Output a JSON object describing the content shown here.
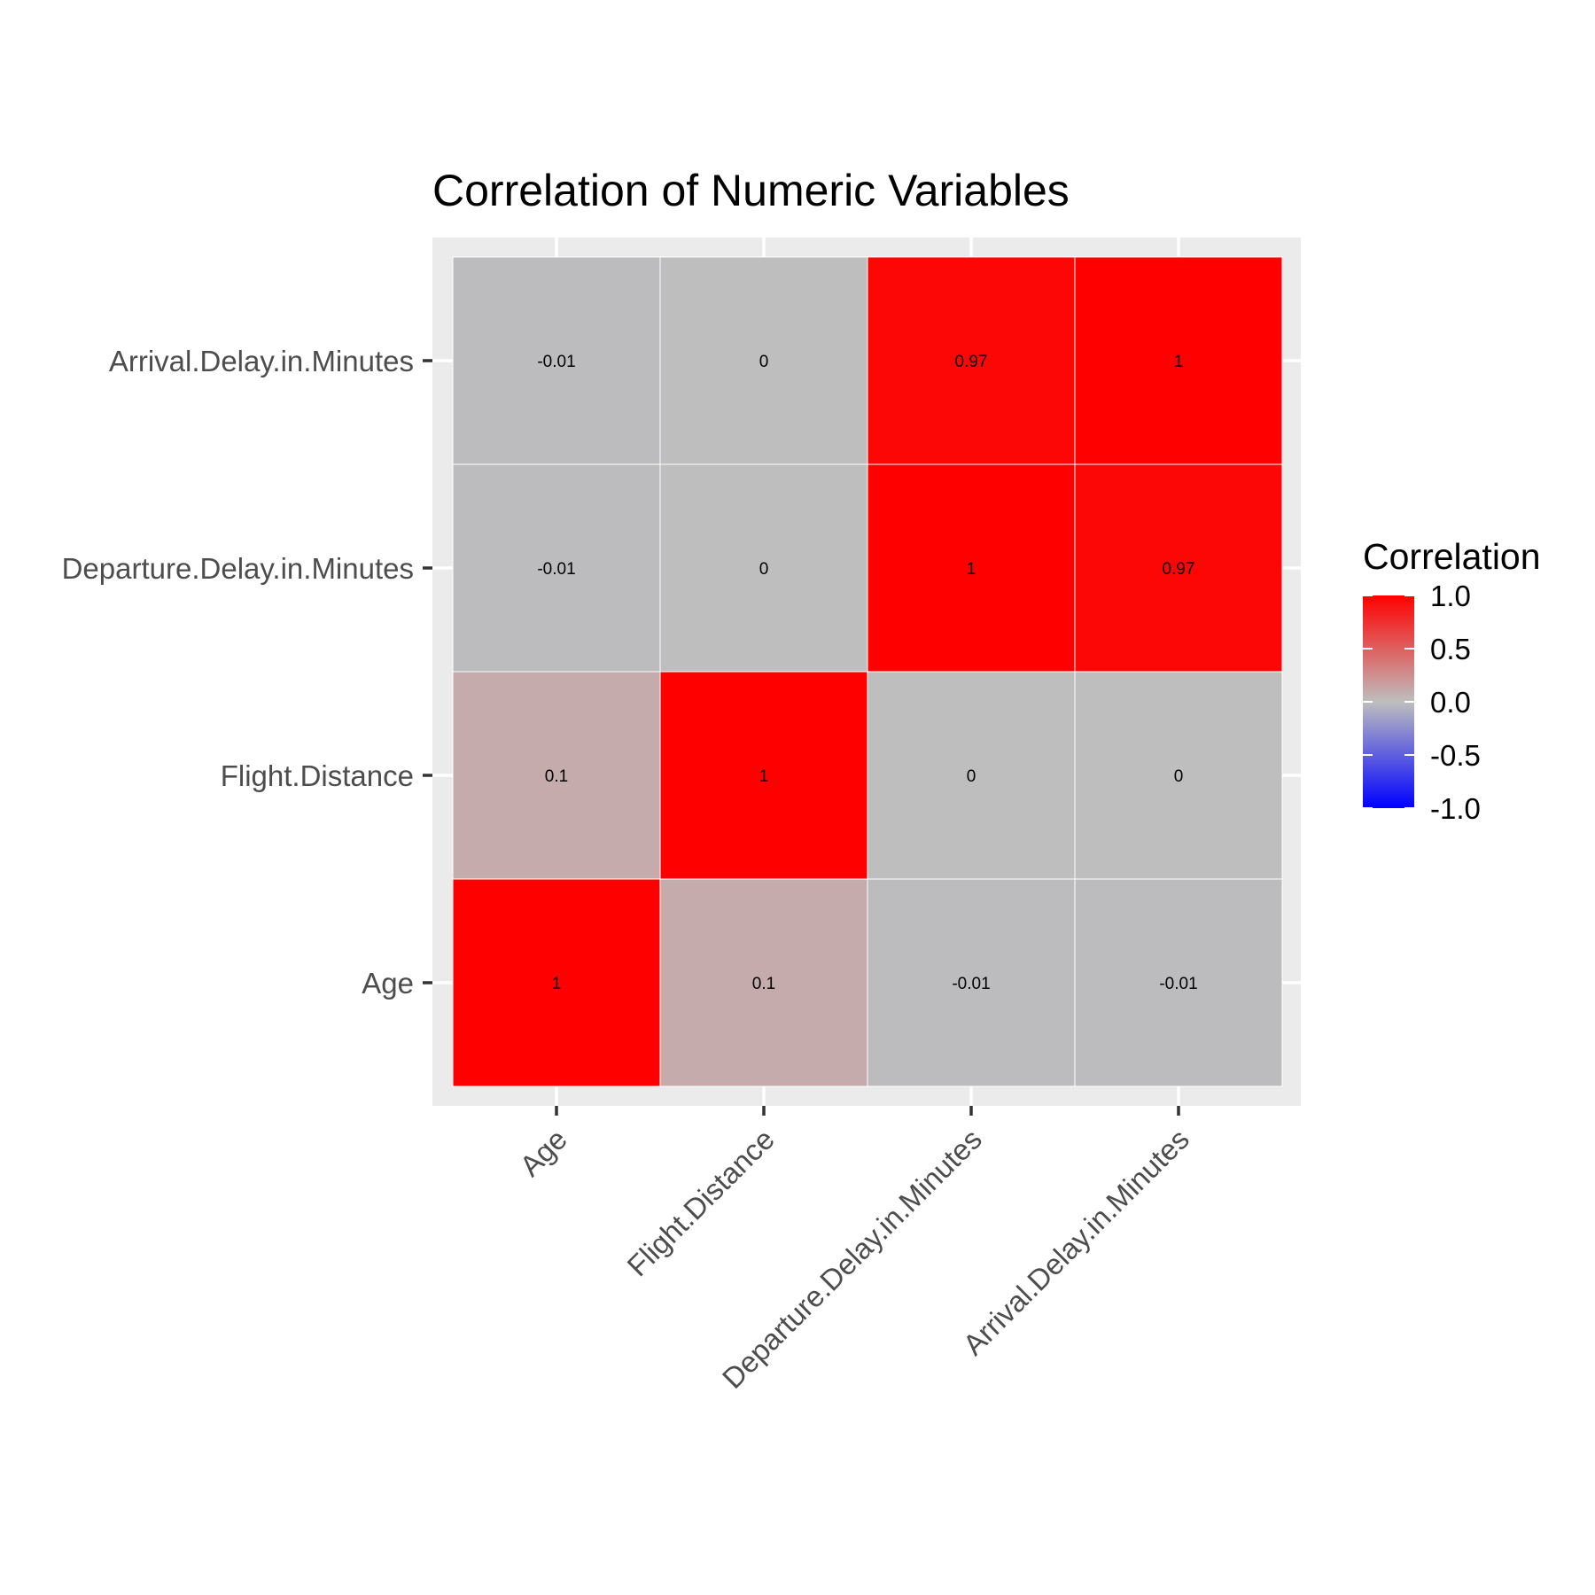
{
  "chart_data": {
    "type": "heatmap",
    "title": "Correlation of Numeric Variables",
    "xlabel": "",
    "ylabel": "",
    "variables": [
      "Age",
      "Flight.Distance",
      "Departure.Delay.in.Minutes",
      "Arrival.Delay.in.Minutes"
    ],
    "matrix": [
      [
        1,
        0.1,
        -0.01,
        -0.01
      ],
      [
        0.1,
        1,
        0,
        0
      ],
      [
        -0.01,
        0,
        1,
        0.97
      ],
      [
        -0.01,
        0,
        0.97,
        1
      ]
    ],
    "cell_labels": [
      [
        "1",
        "0.1",
        "-0.01",
        "-0.01"
      ],
      [
        "0.1",
        "1",
        "0",
        "0"
      ],
      [
        "-0.01",
        "0",
        "1",
        "0.97"
      ],
      [
        "-0.01",
        "0",
        "0.97",
        "1"
      ]
    ],
    "legend": {
      "title": "Correlation",
      "placement": "right",
      "limits": [
        -1,
        1
      ],
      "breaks": [
        1.0,
        0.5,
        0.0,
        -0.5,
        -1.0
      ],
      "break_labels": [
        "1.0",
        "0.5",
        "0.0",
        "-0.5",
        "-1.0"
      ]
    },
    "colors": {
      "low": "#0000ff",
      "mid": "#bebebe",
      "high": "#ff0000",
      "panel_background": "#ebebeb",
      "grid": "#ffffff"
    },
    "grid": true
  }
}
